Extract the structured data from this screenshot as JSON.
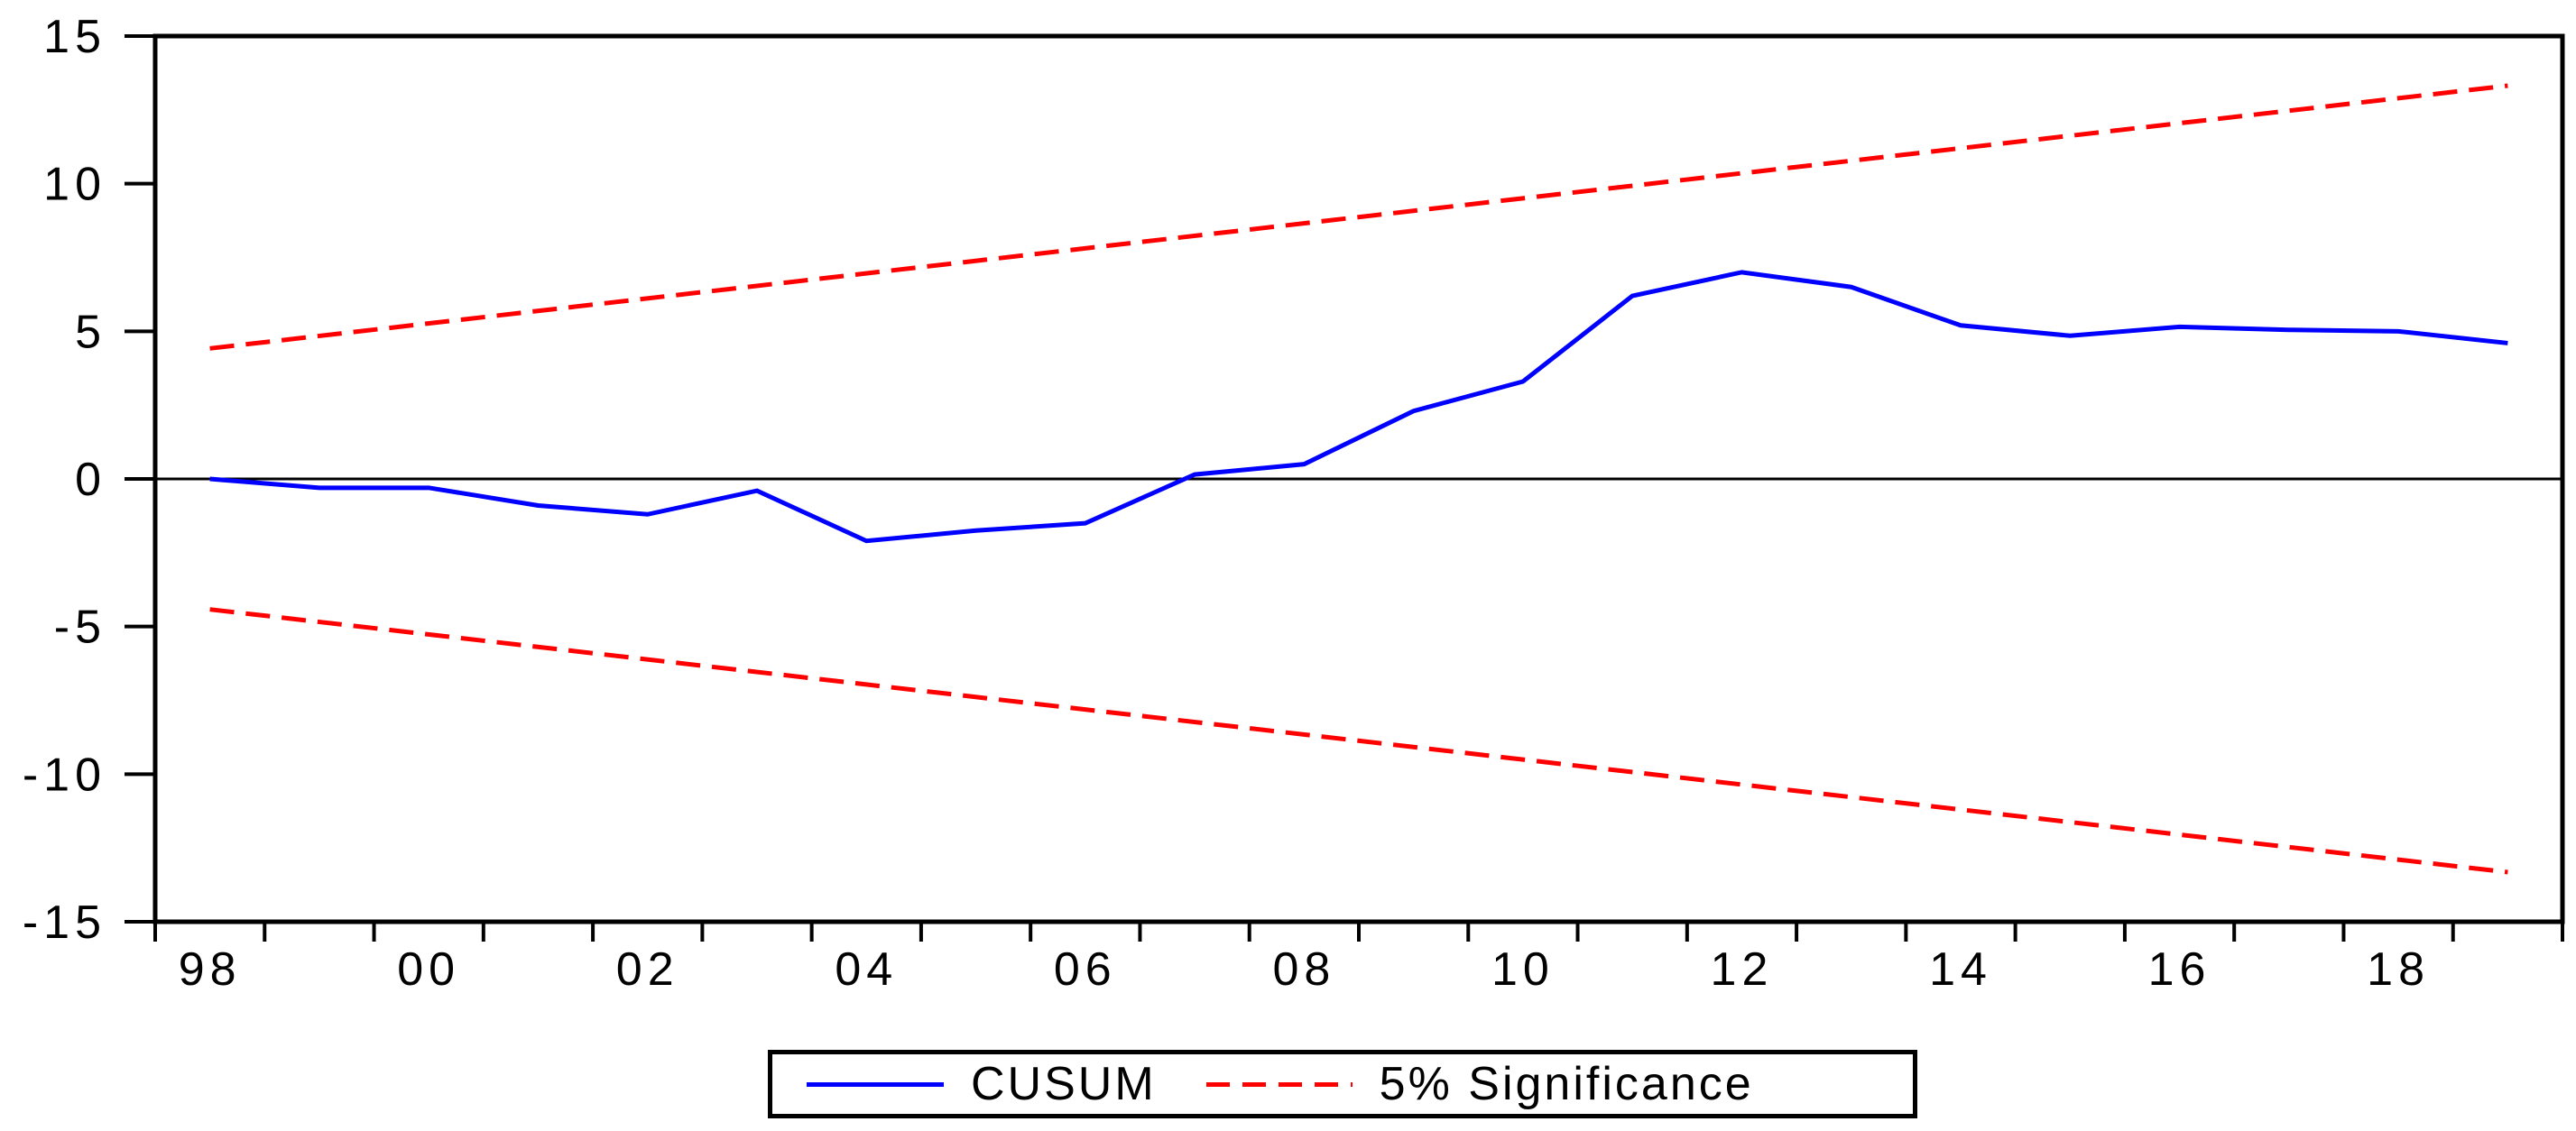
{
  "chart_data": {
    "type": "line",
    "title": "",
    "xlabel": "",
    "ylabel": "",
    "x": [
      1998,
      1999,
      2000,
      2001,
      2002,
      2003,
      2004,
      2005,
      2006,
      2007,
      2008,
      2009,
      2010,
      2011,
      2012,
      2013,
      2014,
      2015,
      2016,
      2017,
      2018,
      2019
    ],
    "x_tick_labels": [
      "98",
      "00",
      "02",
      "04",
      "06",
      "08",
      "10",
      "12",
      "14",
      "16",
      "18"
    ],
    "ylim": [
      -15,
      15
    ],
    "y_ticks": [
      -15,
      -10,
      -5,
      0,
      5,
      10,
      15
    ],
    "zero_line": true,
    "grid": false,
    "legend_position": "bottom-center",
    "series": [
      {
        "name": "CUSUM",
        "color": "#0000ff",
        "line_style": "solid",
        "values": [
          0.0,
          -0.3,
          -0.3,
          -0.9,
          -1.2,
          -0.4,
          -2.1,
          -1.75,
          -1.5,
          0.15,
          0.5,
          2.3,
          3.3,
          6.2,
          7.0,
          6.5,
          5.2,
          4.85,
          5.15,
          5.05,
          5.0,
          4.6
        ]
      },
      {
        "name": "5% Significance upper bound",
        "color": "#ff0000",
        "line_style": "dashed",
        "values_linear": {
          "x_start": 1998,
          "y_start": 4.42,
          "x_end": 2019,
          "y_end": 13.32
        }
      },
      {
        "name": "5% Significance lower bound",
        "color": "#ff0000",
        "line_style": "dashed",
        "values_linear": {
          "x_start": 1998,
          "y_start": -4.42,
          "x_end": 2019,
          "y_end": -13.32
        }
      }
    ]
  },
  "legend": {
    "cusum": "CUSUM",
    "significance": "5% Significance"
  },
  "colors": {
    "cusum_line": "#0000ff",
    "significance_line": "#ff0000",
    "axis": "#000000",
    "background": "#ffffff"
  }
}
